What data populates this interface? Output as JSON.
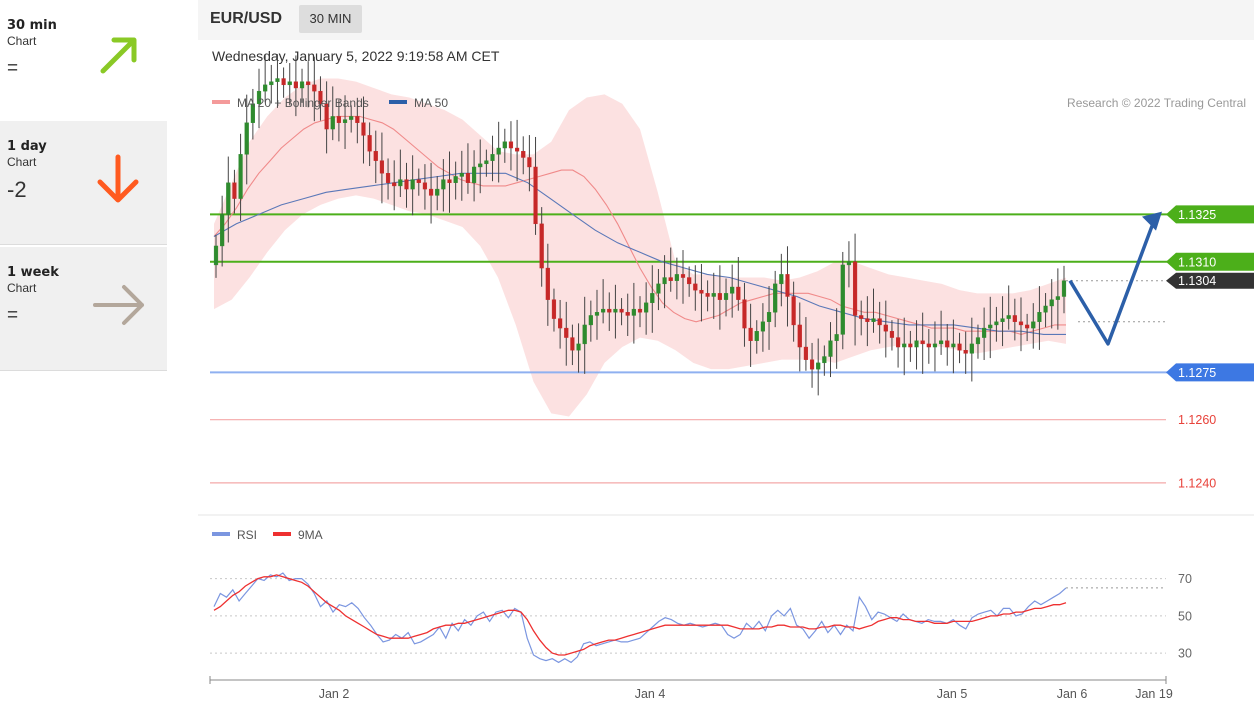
{
  "sidebar": {
    "cards": [
      {
        "title": "30 min",
        "subtitle": "Chart",
        "score": "=",
        "arrow": "up-right-arrow",
        "color": "#8ac926"
      },
      {
        "title": "1 day",
        "subtitle": "Chart",
        "score": "-2",
        "arrow": "down-arrow",
        "color": "#ff5a1f"
      },
      {
        "title": "1 week",
        "subtitle": "Chart",
        "score": "=",
        "arrow": "right-arrow",
        "color": "#b3a79b"
      }
    ]
  },
  "header": {
    "symbol": "EUR/USD",
    "timeframe": "30 MIN",
    "datetime": "Wednesday, January 5, 2022 9:19:58 AM CET"
  },
  "colors": {
    "resistance": "#4caf1a",
    "support": "#3d78e3",
    "target": "#e8423a",
    "bollinger": "#fcdcdc",
    "ma20": "#f08a8a",
    "ma50": "#5b78b8",
    "bull": "#2e8b2e",
    "bear": "#c62828",
    "forecast": "#2c5fa8",
    "rsi": "#7b96e0",
    "rsi_ma": "#ee3030"
  },
  "chart_data": [
    {
      "type": "candlestick",
      "legend": [
        {
          "label": "MA 20 + Bollinger Bands",
          "color": "#f08a8a"
        },
        {
          "label": "MA 50",
          "color": "#2c5fa8"
        }
      ],
      "credit": "Research © 2022 Trading Central",
      "ylim": [
        1.1233,
        1.1365
      ],
      "x_ticks": [
        "Jan 2",
        "Jan 4",
        "Jan 5",
        "Jan 6",
        "Jan 19"
      ],
      "levels": [
        {
          "label": "1.1325",
          "value": 1.1325,
          "kind": "resistance"
        },
        {
          "label": "1.1310",
          "value": 1.131,
          "kind": "resistance"
        },
        {
          "label": "1.1304",
          "value": 1.1304,
          "kind": "last"
        },
        {
          "label": "1.1275",
          "value": 1.1275,
          "kind": "support"
        },
        {
          "label": "1.1260",
          "value": 1.126,
          "kind": "target"
        },
        {
          "label": "1.1240",
          "value": 1.124,
          "kind": "target"
        }
      ],
      "close": [
        1.1315,
        1.1325,
        1.1335,
        1.133,
        1.1344,
        1.1354,
        1.136,
        1.1364,
        1.1366,
        1.1367,
        1.1368,
        1.1366,
        1.1367,
        1.1365,
        1.1367,
        1.1366,
        1.1364,
        1.136,
        1.1352,
        1.1356,
        1.1354,
        1.1355,
        1.1356,
        1.1354,
        1.135,
        1.1345,
        1.1342,
        1.1338,
        1.1335,
        1.1334,
        1.1336,
        1.1333,
        1.1336,
        1.1335,
        1.1333,
        1.1331,
        1.1333,
        1.1336,
        1.1335,
        1.1337,
        1.1338,
        1.1335,
        1.134,
        1.1341,
        1.1342,
        1.1344,
        1.1346,
        1.1348,
        1.1346,
        1.1345,
        1.1343,
        1.134,
        1.1322,
        1.1308,
        1.1298,
        1.1292,
        1.1289,
        1.1286,
        1.1282,
        1.1284,
        1.129,
        1.1293,
        1.1294,
        1.1295,
        1.1294,
        1.1295,
        1.1294,
        1.1293,
        1.1295,
        1.1294,
        1.1297,
        1.13,
        1.1303,
        1.1305,
        1.1304,
        1.1306,
        1.1305,
        1.1303,
        1.1301,
        1.13,
        1.1299,
        1.13,
        1.1298,
        1.13,
        1.1302,
        1.1298,
        1.1289,
        1.1285,
        1.1288,
        1.1291,
        1.1294,
        1.1303,
        1.1306,
        1.1299,
        1.129,
        1.1283,
        1.1279,
        1.1276,
        1.1278,
        1.128,
        1.1285,
        1.1287,
        1.1309,
        1.131,
        1.1293,
        1.1292,
        1.1291,
        1.1292,
        1.129,
        1.1288,
        1.1286,
        1.1283,
        1.1284,
        1.1283,
        1.1285,
        1.1284,
        1.1283,
        1.1284,
        1.1285,
        1.1283,
        1.1284,
        1.1282,
        1.1281,
        1.1284,
        1.1286,
        1.1289,
        1.129,
        1.1291,
        1.1292,
        1.1293,
        1.1291,
        1.129,
        1.1289,
        1.1291,
        1.1294,
        1.1296,
        1.1298,
        1.1299,
        1.1304
      ],
      "ma20": [
        1.1318,
        1.1322,
        1.1327,
        1.1333,
        1.1338,
        1.1342,
        1.1346,
        1.1349,
        1.1352,
        1.1354,
        1.1355,
        1.1356,
        1.1356,
        1.1356,
        1.1355,
        1.1354,
        1.1352,
        1.1349,
        1.1346,
        1.1343,
        1.134,
        1.1338,
        1.1336,
        1.1335,
        1.1334,
        1.1334,
        1.1334,
        1.1335,
        1.1336,
        1.1337,
        1.1338,
        1.1339,
        1.1339,
        1.1337,
        1.1333,
        1.1328,
        1.1322,
        1.1315,
        1.1308,
        1.1302,
        1.1297,
        1.1294,
        1.1292,
        1.1291,
        1.1292,
        1.1293,
        1.1295,
        1.1297,
        1.1298,
        1.1299,
        1.13,
        1.13,
        1.13,
        1.13,
        1.1299,
        1.1298,
        1.1296,
        1.1295,
        1.1294,
        1.1294,
        1.1293,
        1.1292,
        1.1291,
        1.129,
        1.1289,
        1.1289,
        1.1289,
        1.1288,
        1.1288,
        1.1288,
        1.1288,
        1.1288,
        1.1287,
        1.1288,
        1.1289,
        1.129,
        1.129
      ],
      "ma50": [
        1.1318,
        1.1322,
        1.1325,
        1.1328,
        1.133,
        1.1332,
        1.1333,
        1.1334,
        1.1335,
        1.1336,
        1.1337,
        1.1338,
        1.1338,
        1.1338,
        1.1335,
        1.133,
        1.1325,
        1.132,
        1.1316,
        1.1313,
        1.131,
        1.1308,
        1.1306,
        1.1305,
        1.1303,
        1.1301,
        1.1299,
        1.1296,
        1.1294,
        1.1292,
        1.1291,
        1.129,
        1.129,
        1.129,
        1.1289,
        1.1288,
        1.1288,
        1.1287,
        1.1287
      ],
      "bb_upper": [
        1.1322,
        1.1335,
        1.1348,
        1.1356,
        1.1362,
        1.1366,
        1.1368,
        1.1368,
        1.1367,
        1.1365,
        1.1363,
        1.1362,
        1.136,
        1.1358,
        1.1355,
        1.135,
        1.1345,
        1.1344,
        1.1344,
        1.1348,
        1.1358,
        1.1362,
        1.1363,
        1.136,
        1.1352,
        1.1332,
        1.131,
        1.1306,
        1.1306,
        1.1305,
        1.1305,
        1.1305,
        1.1304,
        1.1305,
        1.1307,
        1.131,
        1.131,
        1.1308,
        1.1306,
        1.1305,
        1.1304,
        1.1303,
        1.1301,
        1.13,
        1.13,
        1.13,
        1.1301,
        1.1303,
        1.1305
      ],
      "bb_lower": [
        1.1295,
        1.1298,
        1.1305,
        1.1313,
        1.132,
        1.1325,
        1.1328,
        1.133,
        1.1331,
        1.133,
        1.1328,
        1.1326,
        1.1325,
        1.1323,
        1.1321,
        1.1315,
        1.1305,
        1.129,
        1.1272,
        1.1262,
        1.1261,
        1.1268,
        1.1278,
        1.1283,
        1.1286,
        1.1285,
        1.1282,
        1.1278,
        1.1276,
        1.1276,
        1.1277,
        1.1278,
        1.1279,
        1.1279,
        1.1279,
        1.1278,
        1.128,
        1.1282,
        1.1283,
        1.1284,
        1.1284,
        1.1283,
        1.1282,
        1.1281,
        1.1282,
        1.1283,
        1.1284,
        1.1285,
        1.1284
      ]
    },
    {
      "type": "line",
      "legend": [
        {
          "label": "RSI",
          "color": "#7b96e0"
        },
        {
          "label": "9MA",
          "color": "#ee3030"
        }
      ],
      "ylim": [
        22,
        80
      ],
      "y_ticks": [
        "70",
        "50",
        "30"
      ],
      "rsi": [
        55,
        62,
        60,
        64,
        58,
        62,
        66,
        70,
        69,
        72,
        71,
        73,
        69,
        70,
        70,
        67,
        62,
        55,
        58,
        52,
        56,
        55,
        57,
        54,
        49,
        45,
        40,
        36,
        37,
        40,
        38,
        41,
        35,
        36,
        38,
        40,
        44,
        38,
        46,
        42,
        48,
        45,
        50,
        52,
        47,
        52,
        53,
        49,
        54,
        52,
        38,
        29,
        27,
        26,
        27,
        25,
        27,
        25,
        28,
        35,
        36,
        34,
        35,
        36,
        37,
        36,
        36,
        37,
        38,
        41,
        44,
        47,
        49,
        48,
        46,
        45,
        46,
        45,
        44,
        45,
        46,
        45,
        40,
        38,
        40,
        46,
        43,
        47,
        42,
        50,
        53,
        50,
        54,
        45,
        43,
        38,
        42,
        47,
        41,
        45,
        40,
        45,
        42,
        60,
        55,
        48,
        52,
        51,
        49,
        47,
        51,
        48,
        47,
        46,
        48,
        47,
        47,
        46,
        48,
        45,
        43,
        49,
        51,
        52,
        53,
        50,
        54,
        54,
        50,
        51,
        55,
        58,
        56,
        58,
        60,
        62,
        65
      ],
      "ma": [
        53,
        55,
        58,
        61,
        63,
        66,
        68,
        70,
        71,
        71,
        72,
        71,
        70,
        69,
        68,
        66,
        63,
        60,
        57,
        55,
        53,
        50,
        48,
        46,
        44,
        42,
        40,
        39,
        38,
        38,
        38,
        38,
        39,
        40,
        41,
        43,
        44,
        45,
        45,
        46,
        46,
        47,
        48,
        49,
        50,
        51,
        52,
        53,
        53,
        52,
        48,
        42,
        37,
        33,
        30,
        29,
        29,
        30,
        31,
        32,
        34,
        35,
        36,
        37,
        37,
        38,
        39,
        40,
        41,
        42,
        43,
        44,
        45,
        45,
        45,
        45,
        45,
        45,
        45,
        45,
        45,
        45,
        45,
        44,
        43,
        43,
        43,
        43,
        44,
        44,
        45,
        45,
        44,
        44,
        44,
        43,
        43,
        44,
        44,
        45,
        45,
        44,
        44,
        43,
        44,
        45,
        47,
        48,
        49,
        49,
        48,
        48,
        47,
        47,
        47,
        46,
        46,
        46,
        47,
        47,
        47,
        47,
        48,
        49,
        50,
        50,
        51,
        51,
        52,
        52,
        53,
        54,
        54,
        55,
        56,
        56,
        57
      ]
    }
  ]
}
